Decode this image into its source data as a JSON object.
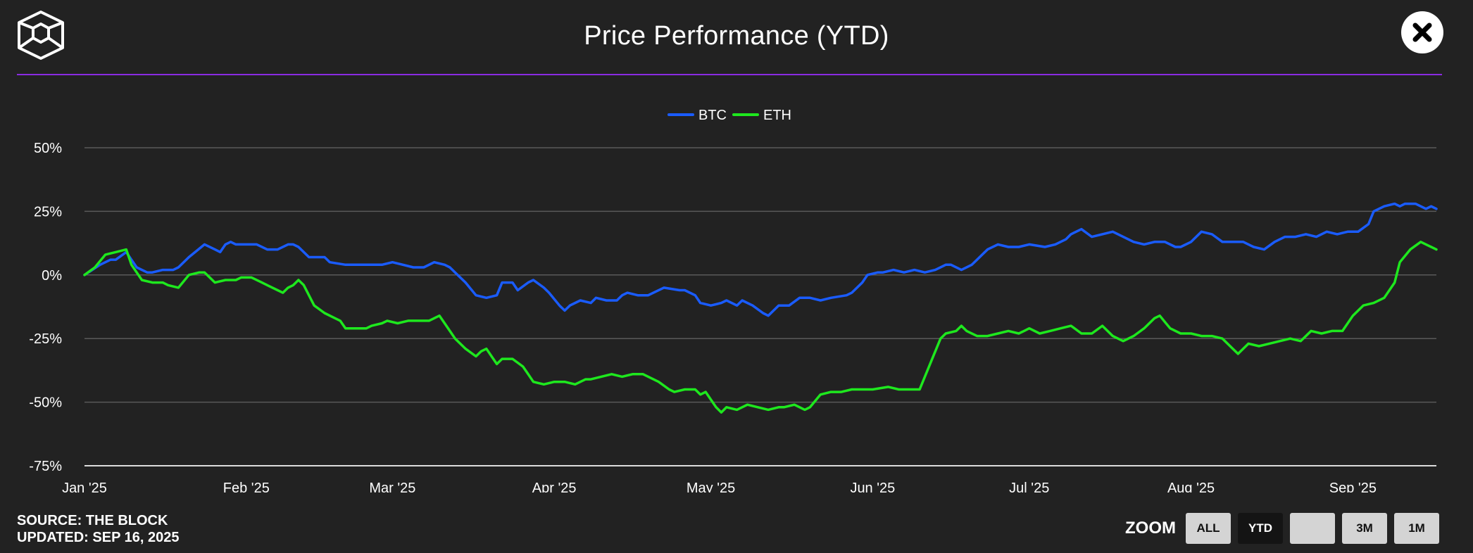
{
  "header": {
    "logo_name": "the-block-cube-logo",
    "title": "Price Performance (YTD)",
    "close_icon": "close-icon"
  },
  "footer": {
    "source": "SOURCE: THE BLOCK",
    "updated": "UPDATED: SEP 16, 2025"
  },
  "zoom": {
    "label": "ZOOM",
    "buttons": [
      {
        "label": "ALL",
        "active": false
      },
      {
        "label": "YTD",
        "active": true
      },
      {
        "label": "",
        "active": false
      },
      {
        "label": "3M",
        "active": false
      },
      {
        "label": "1M",
        "active": false
      }
    ]
  },
  "colors": {
    "background": "#222222",
    "btc": "#1a5cff",
    "eth": "#1ee81e",
    "divider": "#8a2be2",
    "grid": "#5a5a5a"
  },
  "chart_data": {
    "type": "line",
    "title": "Price Performance (YTD)",
    "xlabel": "",
    "ylabel": "",
    "x_range_days": [
      0,
      259
    ],
    "ylim": [
      -75,
      50
    ],
    "yticks": [
      "50%",
      "25%",
      "0%",
      "-25%",
      "-50%",
      "-75%"
    ],
    "ytick_values": [
      50,
      25,
      0,
      -25,
      -50,
      -75
    ],
    "xticks": [
      {
        "label": "Jan '25",
        "day": 0
      },
      {
        "label": "Feb '25",
        "day": 31
      },
      {
        "label": "Mar '25",
        "day": 59
      },
      {
        "label": "Apr '25",
        "day": 90
      },
      {
        "label": "May '25",
        "day": 120
      },
      {
        "label": "Jun '25",
        "day": 151
      },
      {
        "label": "Jul '25",
        "day": 181
      },
      {
        "label": "Aug '25",
        "day": 212
      },
      {
        "label": "Sep '25",
        "day": 243
      }
    ],
    "legend": {
      "position": "top-center",
      "entries": [
        "BTC",
        "ETH"
      ]
    },
    "series": [
      {
        "name": "BTC",
        "points": [
          [
            0,
            0
          ],
          [
            3,
            4
          ],
          [
            5,
            6
          ],
          [
            6,
            6
          ],
          [
            8,
            9
          ],
          [
            10,
            3
          ],
          [
            12,
            1
          ],
          [
            13,
            1
          ],
          [
            15,
            2
          ],
          [
            17,
            2
          ],
          [
            18,
            3
          ],
          [
            20,
            7
          ],
          [
            23,
            12
          ],
          [
            25,
            10
          ],
          [
            26,
            9
          ],
          [
            27,
            12
          ],
          [
            28,
            13
          ],
          [
            29,
            12
          ],
          [
            31,
            12
          ],
          [
            33,
            12
          ],
          [
            35,
            10
          ],
          [
            37,
            10
          ],
          [
            39,
            12
          ],
          [
            40,
            12
          ],
          [
            41,
            11
          ],
          [
            43,
            7
          ],
          [
            46,
            7
          ],
          [
            47,
            5
          ],
          [
            50,
            4
          ],
          [
            53,
            4
          ],
          [
            55,
            4
          ],
          [
            57,
            4
          ],
          [
            59,
            5
          ],
          [
            61,
            4
          ],
          [
            63,
            3
          ],
          [
            65,
            3
          ],
          [
            67,
            5
          ],
          [
            69,
            4
          ],
          [
            70,
            3
          ],
          [
            71,
            1
          ],
          [
            73,
            -3
          ],
          [
            75,
            -8
          ],
          [
            77,
            -9
          ],
          [
            79,
            -8
          ],
          [
            80,
            -3
          ],
          [
            82,
            -3
          ],
          [
            83,
            -6
          ],
          [
            85,
            -3
          ],
          [
            86,
            -2
          ],
          [
            88,
            -5
          ],
          [
            89,
            -7
          ],
          [
            91,
            -12
          ],
          [
            92,
            -14
          ],
          [
            93,
            -12
          ],
          [
            95,
            -10
          ],
          [
            97,
            -11
          ],
          [
            98,
            -9
          ],
          [
            100,
            -10
          ],
          [
            102,
            -10
          ],
          [
            103,
            -8
          ],
          [
            104,
            -7
          ],
          [
            106,
            -8
          ],
          [
            108,
            -8
          ],
          [
            109,
            -7
          ],
          [
            111,
            -5
          ],
          [
            114,
            -6
          ],
          [
            115,
            -6
          ],
          [
            117,
            -8
          ],
          [
            118,
            -11
          ],
          [
            120,
            -12
          ],
          [
            122,
            -11
          ],
          [
            123,
            -10
          ],
          [
            125,
            -12
          ],
          [
            126,
            -10
          ],
          [
            128,
            -12
          ],
          [
            130,
            -15
          ],
          [
            131,
            -16
          ],
          [
            133,
            -12
          ],
          [
            135,
            -12
          ],
          [
            137,
            -9
          ],
          [
            139,
            -9
          ],
          [
            141,
            -10
          ],
          [
            143,
            -9
          ],
          [
            146,
            -8
          ],
          [
            147,
            -7
          ],
          [
            149,
            -3
          ],
          [
            150,
            0
          ],
          [
            152,
            1
          ],
          [
            153,
            1
          ],
          [
            155,
            2
          ],
          [
            157,
            1
          ],
          [
            159,
            2
          ],
          [
            161,
            1
          ],
          [
            163,
            2
          ],
          [
            165,
            4
          ],
          [
            166,
            4
          ],
          [
            168,
            2
          ],
          [
            170,
            4
          ],
          [
            171,
            6
          ],
          [
            173,
            10
          ],
          [
            175,
            12
          ],
          [
            177,
            11
          ],
          [
            179,
            11
          ],
          [
            181,
            12
          ],
          [
            184,
            11
          ],
          [
            186,
            12
          ],
          [
            188,
            14
          ],
          [
            189,
            16
          ],
          [
            191,
            18
          ],
          [
            193,
            15
          ],
          [
            195,
            16
          ],
          [
            197,
            17
          ],
          [
            199,
            15
          ],
          [
            201,
            13
          ],
          [
            203,
            12
          ],
          [
            205,
            13
          ],
          [
            207,
            13
          ],
          [
            209,
            11
          ],
          [
            210,
            11
          ],
          [
            212,
            13
          ],
          [
            214,
            17
          ],
          [
            216,
            16
          ],
          [
            218,
            13
          ],
          [
            220,
            13
          ],
          [
            222,
            13
          ],
          [
            224,
            11
          ],
          [
            226,
            10
          ],
          [
            228,
            13
          ],
          [
            230,
            15
          ],
          [
            232,
            15
          ],
          [
            234,
            16
          ],
          [
            236,
            15
          ],
          [
            238,
            17
          ],
          [
            240,
            16
          ],
          [
            242,
            17
          ],
          [
            244,
            17
          ],
          [
            246,
            20
          ],
          [
            247,
            25
          ],
          [
            249,
            27
          ],
          [
            251,
            28
          ],
          [
            252,
            27
          ],
          [
            253,
            28
          ],
          [
            255,
            28
          ],
          [
            257,
            26
          ],
          [
            258,
            27
          ],
          [
            259,
            26
          ]
        ]
      },
      {
        "name": "ETH",
        "points": [
          [
            0,
            0
          ],
          [
            2,
            3
          ],
          [
            4,
            8
          ],
          [
            6,
            9
          ],
          [
            8,
            10
          ],
          [
            9,
            4
          ],
          [
            11,
            -2
          ],
          [
            13,
            -3
          ],
          [
            15,
            -3
          ],
          [
            16,
            -4
          ],
          [
            18,
            -5
          ],
          [
            20,
            0
          ],
          [
            22,
            1
          ],
          [
            23,
            1
          ],
          [
            25,
            -3
          ],
          [
            27,
            -2
          ],
          [
            29,
            -2
          ],
          [
            30,
            -1
          ],
          [
            32,
            -1
          ],
          [
            34,
            -3
          ],
          [
            35,
            -4
          ],
          [
            37,
            -6
          ],
          [
            38,
            -7
          ],
          [
            39,
            -5
          ],
          [
            40,
            -4
          ],
          [
            41,
            -2
          ],
          [
            42,
            -4
          ],
          [
            44,
            -12
          ],
          [
            46,
            -15
          ],
          [
            48,
            -17
          ],
          [
            49,
            -18
          ],
          [
            50,
            -21
          ],
          [
            52,
            -21
          ],
          [
            54,
            -21
          ],
          [
            55,
            -20
          ],
          [
            57,
            -19
          ],
          [
            58,
            -18
          ],
          [
            60,
            -19
          ],
          [
            62,
            -18
          ],
          [
            64,
            -18
          ],
          [
            66,
            -18
          ],
          [
            67,
            -17
          ],
          [
            68,
            -16
          ],
          [
            69,
            -19
          ],
          [
            71,
            -25
          ],
          [
            73,
            -29
          ],
          [
            75,
            -32
          ],
          [
            76,
            -30
          ],
          [
            77,
            -29
          ],
          [
            79,
            -35
          ],
          [
            80,
            -33
          ],
          [
            82,
            -33
          ],
          [
            84,
            -36
          ],
          [
            85,
            -39
          ],
          [
            86,
            -42
          ],
          [
            88,
            -43
          ],
          [
            90,
            -42
          ],
          [
            92,
            -42
          ],
          [
            94,
            -43
          ],
          [
            96,
            -41
          ],
          [
            97,
            -41
          ],
          [
            99,
            -40
          ],
          [
            101,
            -39
          ],
          [
            103,
            -40
          ],
          [
            105,
            -39
          ],
          [
            107,
            -39
          ],
          [
            108,
            -40
          ],
          [
            110,
            -42
          ],
          [
            112,
            -45
          ],
          [
            113,
            -46
          ],
          [
            115,
            -45
          ],
          [
            117,
            -45
          ],
          [
            118,
            -47
          ],
          [
            119,
            -46
          ],
          [
            121,
            -52
          ],
          [
            122,
            -54
          ],
          [
            123,
            -52
          ],
          [
            125,
            -53
          ],
          [
            127,
            -51
          ],
          [
            129,
            -52
          ],
          [
            131,
            -53
          ],
          [
            133,
            -52
          ],
          [
            134,
            -52
          ],
          [
            136,
            -51
          ],
          [
            138,
            -53
          ],
          [
            139,
            -52
          ],
          [
            141,
            -47
          ],
          [
            143,
            -46
          ],
          [
            145,
            -46
          ],
          [
            147,
            -45
          ],
          [
            149,
            -45
          ],
          [
            151,
            -45
          ],
          [
            154,
            -44
          ],
          [
            156,
            -45
          ],
          [
            158,
            -45
          ],
          [
            160,
            -45
          ],
          [
            162,
            -35
          ],
          [
            164,
            -25
          ],
          [
            165,
            -23
          ],
          [
            167,
            -22
          ],
          [
            168,
            -20
          ],
          [
            169,
            -22
          ],
          [
            171,
            -24
          ],
          [
            173,
            -24
          ],
          [
            175,
            -23
          ],
          [
            177,
            -22
          ],
          [
            179,
            -23
          ],
          [
            180,
            -22
          ],
          [
            181,
            -21
          ],
          [
            183,
            -23
          ],
          [
            185,
            -22
          ],
          [
            187,
            -21
          ],
          [
            189,
            -20
          ],
          [
            191,
            -23
          ],
          [
            193,
            -23
          ],
          [
            195,
            -20
          ],
          [
            197,
            -24
          ],
          [
            199,
            -26
          ],
          [
            201,
            -24
          ],
          [
            203,
            -21
          ],
          [
            205,
            -17
          ],
          [
            206,
            -16
          ],
          [
            208,
            -21
          ],
          [
            210,
            -23
          ],
          [
            212,
            -23
          ],
          [
            214,
            -24
          ],
          [
            216,
            -24
          ],
          [
            218,
            -25
          ],
          [
            220,
            -29
          ],
          [
            221,
            -31
          ],
          [
            223,
            -27
          ],
          [
            225,
            -28
          ],
          [
            227,
            -27
          ],
          [
            229,
            -26
          ],
          [
            231,
            -25
          ],
          [
            233,
            -26
          ],
          [
            235,
            -22
          ],
          [
            237,
            -23
          ],
          [
            239,
            -22
          ],
          [
            241,
            -22
          ],
          [
            243,
            -16
          ],
          [
            245,
            -12
          ],
          [
            247,
            -11
          ],
          [
            249,
            -9
          ],
          [
            251,
            -3
          ],
          [
            252,
            5
          ],
          [
            254,
            10
          ],
          [
            256,
            13
          ],
          [
            257,
            12
          ],
          [
            258,
            11
          ],
          [
            259,
            10
          ]
        ]
      }
    ]
  }
}
